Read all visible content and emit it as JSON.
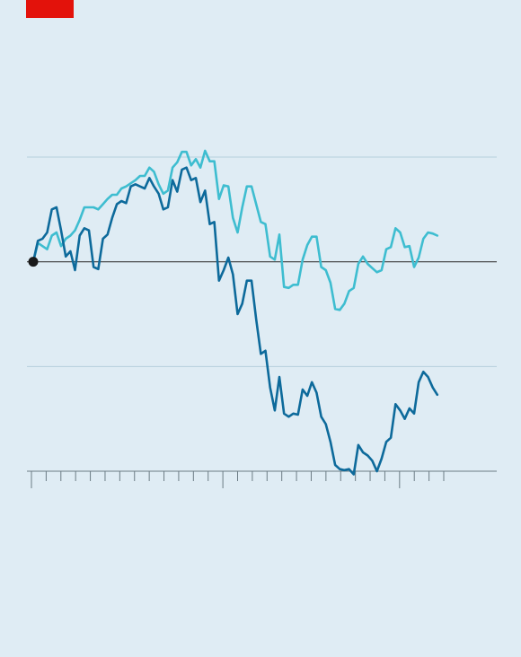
{
  "colors": {
    "background": "#dfecf4",
    "brand_tag": "#e3120b",
    "gridline": "#b6cfdc",
    "baseline": "#3a3a3a",
    "axis": "#6b7b84",
    "series_dark": "#0d6a9b",
    "series_light": "#3ebdd0",
    "origin_dot": "#1a1a1a"
  },
  "chart_data": {
    "type": "line",
    "title": "",
    "subtitle": "",
    "xlabel": "",
    "ylabel": "",
    "x_tick_count": 29,
    "x_major_ticks": [
      0,
      13,
      25
    ],
    "x_range": [
      0,
      88
    ],
    "ylim": [
      -2,
      1
    ],
    "grid": true,
    "gridlines_y": [
      1,
      0,
      -1
    ],
    "legend": "none",
    "origin_marker": true,
    "series": [
      {
        "id": "dark",
        "values": [
          0,
          0.2,
          0.22,
          0.28,
          0.5,
          0.52,
          0.3,
          0.05,
          0.1,
          -0.08,
          0.25,
          0.32,
          0.3,
          -0.05,
          -0.07,
          0.22,
          0.26,
          0.42,
          0.55,
          0.58,
          0.56,
          0.72,
          0.74,
          0.72,
          0.7,
          0.8,
          0.72,
          0.65,
          0.5,
          0.52,
          0.78,
          0.67,
          0.88,
          0.9,
          0.78,
          0.8,
          0.57,
          0.68,
          0.36,
          0.38,
          -0.18,
          -0.08,
          0.04,
          -0.12,
          -0.5,
          -0.4,
          -0.18,
          -0.18,
          -0.55,
          -0.88,
          -0.85,
          -1.2,
          -1.42,
          -1.1,
          -1.45,
          -1.48,
          -1.45,
          -1.46,
          -1.22,
          -1.28,
          -1.15,
          -1.25,
          -1.48,
          -1.55,
          -1.72,
          -1.94,
          -1.98,
          -1.99,
          -1.98,
          -2.03,
          -1.75,
          -1.82,
          -1.85,
          -1.9,
          -2.0,
          -1.88,
          -1.72,
          -1.68,
          -1.36,
          -1.42,
          -1.5,
          -1.4,
          -1.45,
          -1.15,
          -1.05,
          -1.1,
          -1.2,
          -1.27
        ]
      },
      {
        "id": "light",
        "values": [
          0,
          0.18,
          0.15,
          0.12,
          0.25,
          0.28,
          0.15,
          0.22,
          0.25,
          0.3,
          0.4,
          0.52,
          0.52,
          0.52,
          0.5,
          0.55,
          0.6,
          0.64,
          0.64,
          0.7,
          0.72,
          0.75,
          0.78,
          0.82,
          0.82,
          0.9,
          0.86,
          0.74,
          0.65,
          0.68,
          0.9,
          0.95,
          1.05,
          1.05,
          0.92,
          0.98,
          0.9,
          1.06,
          0.96,
          0.96,
          0.6,
          0.73,
          0.72,
          0.42,
          0.28,
          0.52,
          0.72,
          0.72,
          0.55,
          0.38,
          0.36,
          0.05,
          0.02,
          0.26,
          -0.24,
          -0.25,
          -0.22,
          -0.22,
          0.02,
          0.16,
          0.24,
          0.24,
          -0.05,
          -0.08,
          -0.2,
          -0.45,
          -0.46,
          -0.4,
          -0.28,
          -0.25,
          -0.02,
          0.05,
          -0.02,
          -0.06,
          -0.1,
          -0.08,
          0.12,
          0.14,
          0.32,
          0.28,
          0.14,
          0.15,
          -0.05,
          0.04,
          0.22,
          0.28,
          0.27,
          0.25
        ]
      }
    ]
  }
}
